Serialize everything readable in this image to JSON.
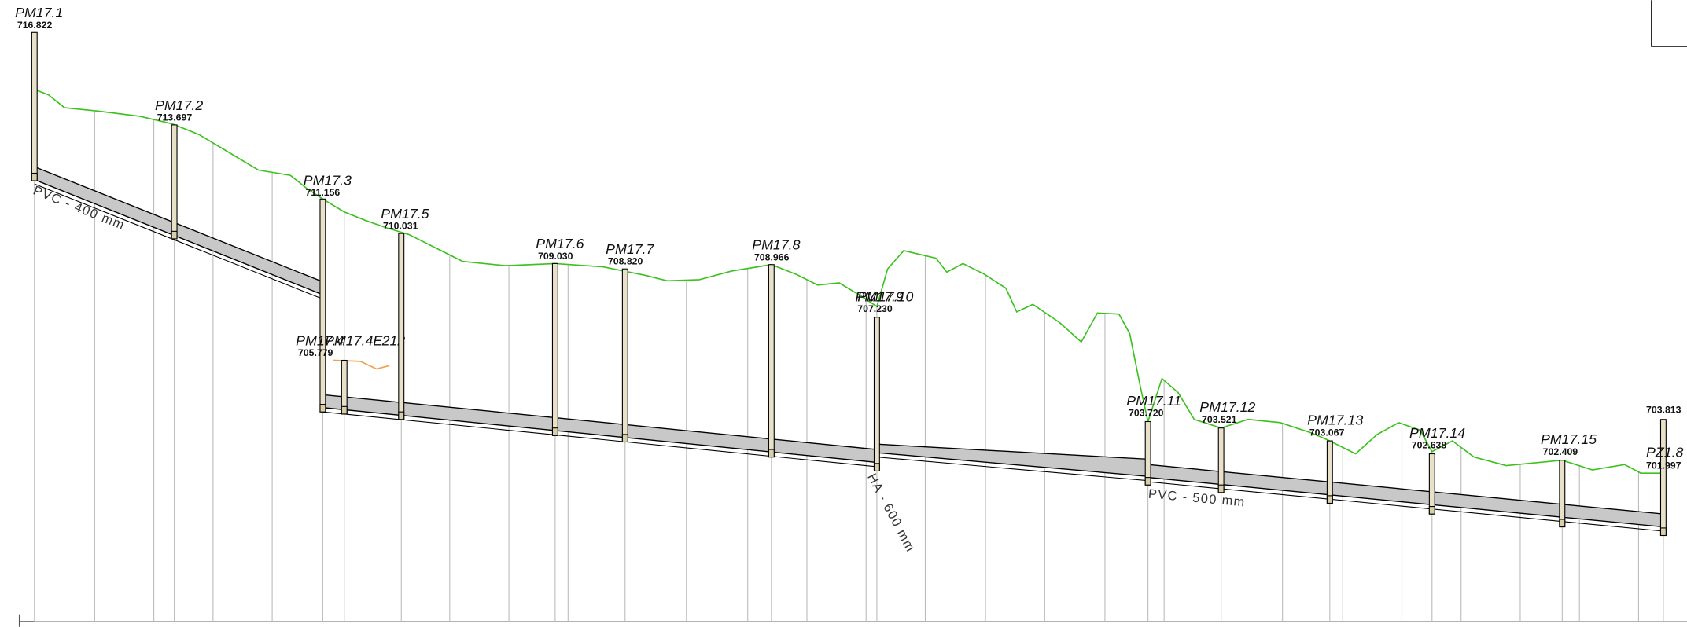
{
  "manholes": [
    {
      "label": "PM17.1",
      "elevation": "716.822"
    },
    {
      "label": "PM17.2",
      "elevation": "713.697"
    },
    {
      "label": "PM17.3",
      "elevation": "711.156"
    },
    {
      "label": "PM17.4",
      "label2": "PM17.4E",
      "note": "212",
      "elevation": "705.779"
    },
    {
      "label": "PM17.5",
      "elevation": "710.031"
    },
    {
      "label": "PM17.6",
      "elevation": "709.030"
    },
    {
      "label": "PM17.7",
      "elevation": "708.820"
    },
    {
      "label": "PM17.8",
      "elevation": "708.966"
    },
    {
      "label": "PM17.9",
      "label2": "PM17.10",
      "elevation": "707.230"
    },
    {
      "label": "PM17.11",
      "elevation": "703.720"
    },
    {
      "label": "PM17.12",
      "elevation": "703.521"
    },
    {
      "label": "PM17.13",
      "elevation": "703.067"
    },
    {
      "label": "PM17.14",
      "elevation": "702.638"
    },
    {
      "label": "PM17.15",
      "elevation": "702.409"
    },
    {
      "label": "PZ1.8",
      "elevation": "701.997",
      "elevation2": "703.813"
    }
  ],
  "pipes": [
    {
      "label": "PVC - 400 mm"
    },
    {
      "label": "HA - 600 mm"
    },
    {
      "label": "PVC - 500 mm"
    }
  ]
}
